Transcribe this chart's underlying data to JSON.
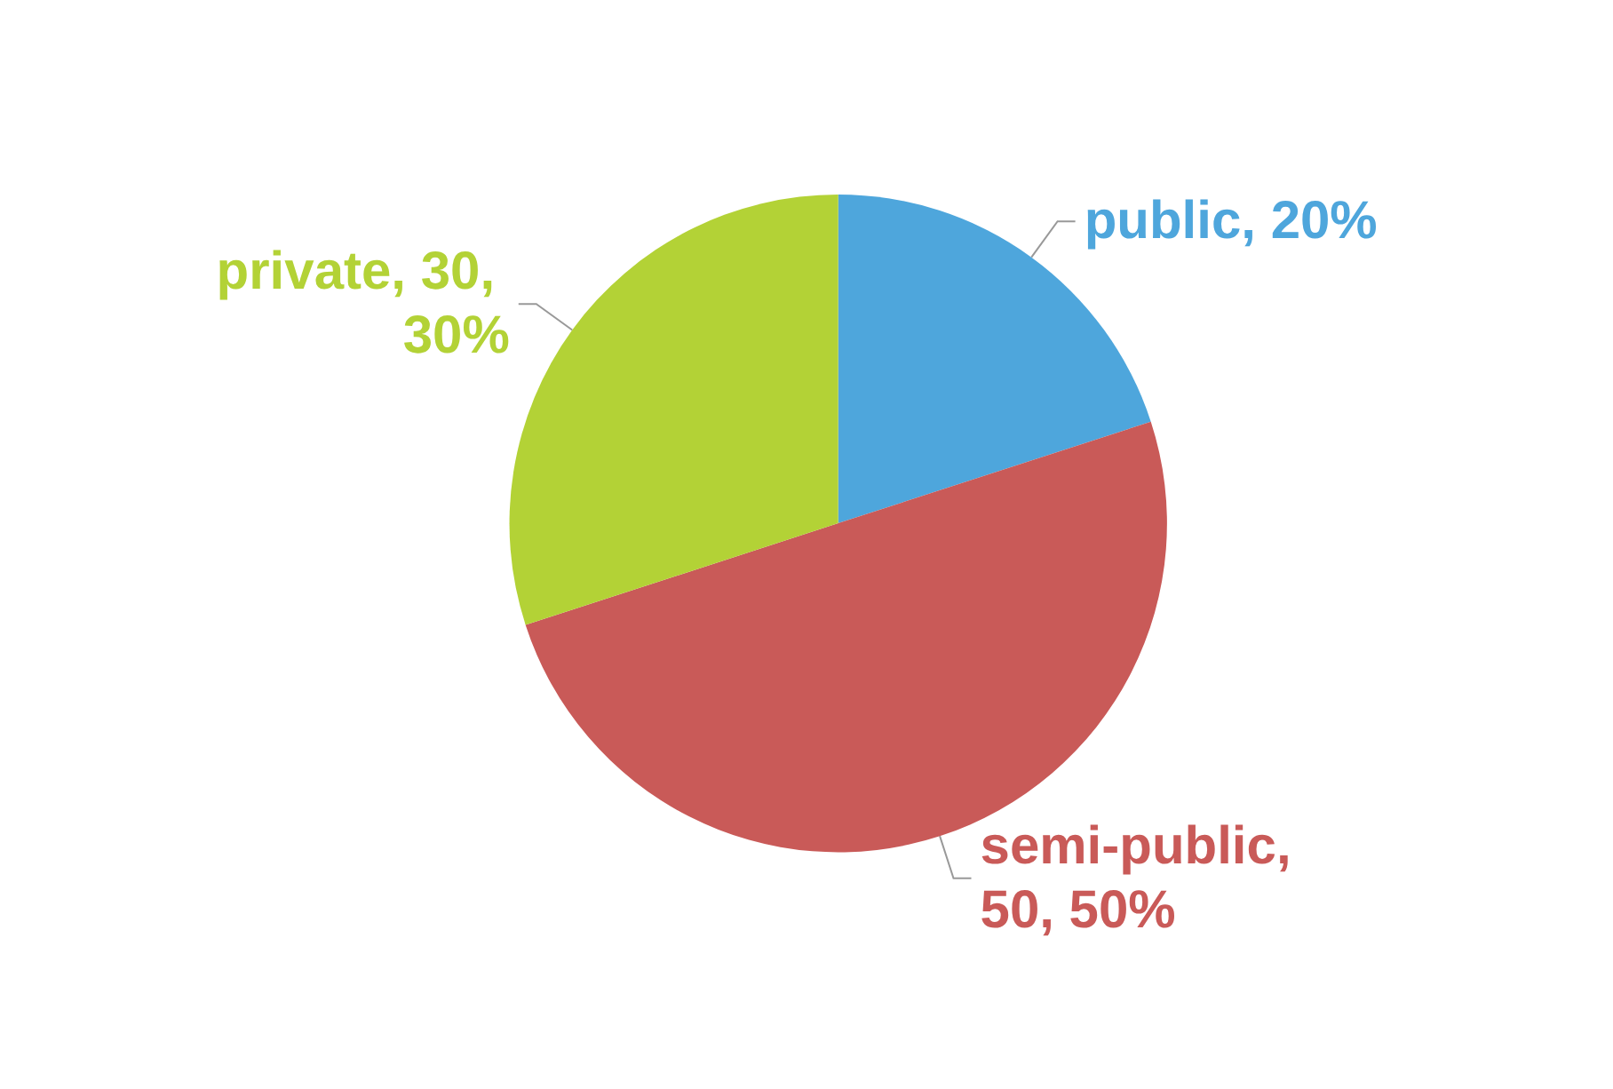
{
  "chart_data": {
    "type": "pie",
    "categories": [
      "public",
      "semi-public",
      "private"
    ],
    "values": [
      20,
      50,
      30
    ],
    "colors": [
      "#4ea6dc",
      "#c95a58",
      "#b3d236"
    ],
    "value_labels": [
      ", 20%",
      ", 50, 50%",
      ", 30, 30%"
    ]
  }
}
